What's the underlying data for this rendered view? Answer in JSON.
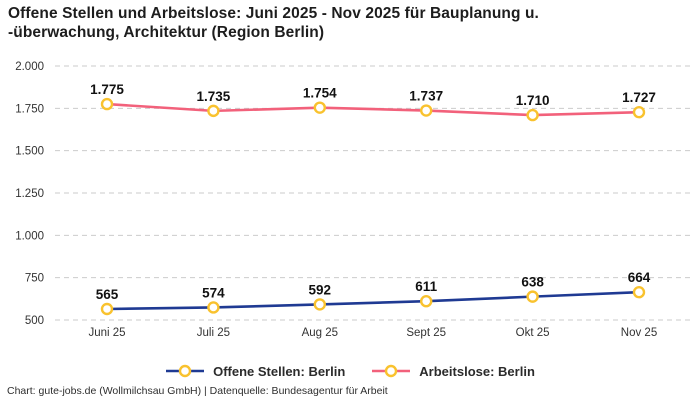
{
  "chart_data": {
    "type": "line",
    "title": "Offene Stellen und Arbeitslose: Juni 2025 - Nov 2025 für Bauplanung u. -überwachung, Architektur (Region Berlin)",
    "categories": [
      "Juni 25",
      "Juli 25",
      "Aug 25",
      "Sept 25",
      "Okt 25",
      "Nov 25"
    ],
    "series": [
      {
        "name": "Offene Stellen: Berlin",
        "color": "#1f3a93",
        "values": [
          565,
          574,
          592,
          611,
          638,
          664
        ],
        "point_labels": [
          "565",
          "574",
          "592",
          "611",
          "638",
          "664"
        ]
      },
      {
        "name": "Arbeitslose: Berlin",
        "color": "#f2617b",
        "values": [
          1775,
          1735,
          1754,
          1737,
          1710,
          1727
        ],
        "point_labels": [
          "1.775",
          "1.735",
          "1.754",
          "1.737",
          "1.710",
          "1.727"
        ]
      }
    ],
    "marker": {
      "fill": "#ffffff",
      "stroke": "#f9c22e"
    },
    "y_axis": {
      "min": 500,
      "max": 2000,
      "ticks": [
        {
          "value": 2000,
          "label": "2.000"
        },
        {
          "value": 1750,
          "label": "1.750"
        },
        {
          "value": 1500,
          "label": "1.500"
        },
        {
          "value": 1250,
          "label": "1.250"
        },
        {
          "value": 1000,
          "label": "1.000"
        },
        {
          "value": 750,
          "label": "750"
        },
        {
          "value": 500,
          "label": "500"
        }
      ]
    },
    "grid": {
      "style": "dashed",
      "color": "#cbcbcb",
      "horizontal_only": true
    },
    "legend_position": "bottom",
    "xlabel": "",
    "ylabel": ""
  },
  "footer": {
    "text": "Chart: gute-jobs.de (Wollmilchsau GmbH) | Datenquelle: Bundesagentur für Arbeit"
  },
  "colors": {
    "background": "#ffffff",
    "title_text": "#1d1d1d",
    "axis_text": "#333333",
    "data_label_text": "#111111"
  }
}
